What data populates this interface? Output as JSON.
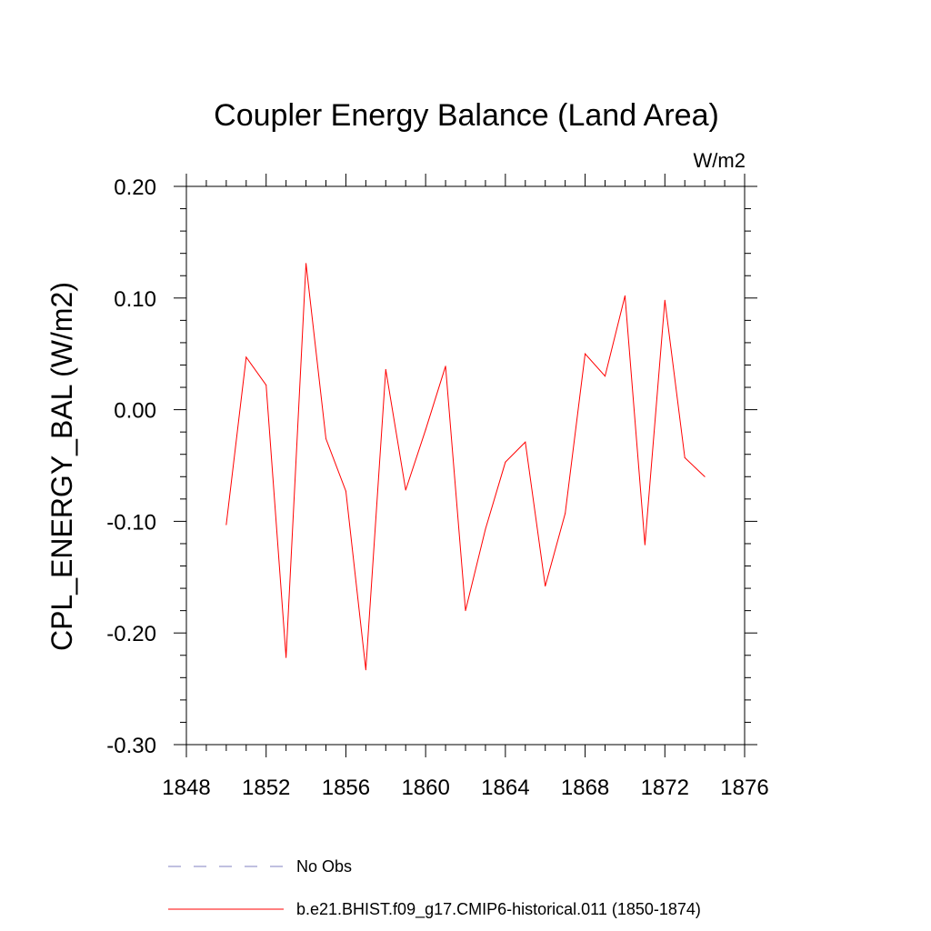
{
  "chart_data": {
    "type": "line",
    "title": "Coupler Energy Balance (Land Area)",
    "units_label": "W/m2",
    "ylabel": "CPL_ENERGY_BAL  (W/m2)",
    "xlabel": "",
    "xlim": [
      1848,
      1876
    ],
    "ylim": [
      -0.3,
      0.2
    ],
    "x_ticks": [
      1848,
      1852,
      1856,
      1860,
      1864,
      1868,
      1872,
      1876
    ],
    "x_tick_labels": [
      "1848",
      "1852",
      "1856",
      "1860",
      "1864",
      "1868",
      "1872",
      "1876"
    ],
    "y_ticks": [
      -0.3,
      -0.2,
      -0.1,
      0.0,
      0.1,
      0.2
    ],
    "y_tick_labels": [
      "-0.30",
      "-0.20",
      "-0.10",
      "0.00",
      "0.10",
      "0.20"
    ],
    "x_minor_step": 1,
    "y_minor_step": 0.02,
    "grid": false,
    "legend_position": "bottom",
    "series": [
      {
        "name": "No Obs",
        "color": "#8080c0",
        "style": "dashed",
        "x": [],
        "values": []
      },
      {
        "name": "b.e21.BHIST.f09_g17.CMIP6-historical.011 (1850-1874)",
        "color": "#ff0000",
        "style": "solid",
        "x": [
          1850,
          1851,
          1852,
          1853,
          1854,
          1855,
          1856,
          1857,
          1858,
          1859,
          1860,
          1861,
          1862,
          1863,
          1864,
          1865,
          1866,
          1867,
          1868,
          1869,
          1870,
          1871,
          1872,
          1873,
          1874
        ],
        "values": [
          -0.103,
          0.047,
          0.022,
          -0.222,
          0.131,
          -0.026,
          -0.073,
          -0.233,
          0.036,
          -0.072,
          -0.018,
          0.039,
          -0.18,
          -0.107,
          -0.047,
          -0.029,
          -0.158,
          -0.093,
          0.05,
          0.03,
          0.102,
          -0.121,
          0.098,
          -0.043,
          -0.06
        ]
      }
    ]
  }
}
